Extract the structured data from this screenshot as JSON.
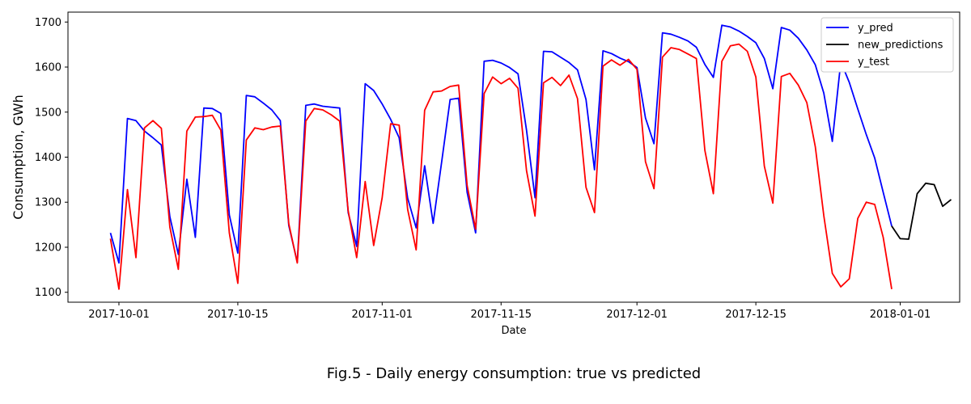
{
  "caption": "Fig.5 - Daily energy consumption: true vs predicted",
  "chart_data": {
    "type": "line",
    "title": "",
    "xlabel": "Date",
    "ylabel": "Consumption, GWh",
    "xlim": [
      "2017-09-25",
      "2018-01-08"
    ],
    "ylim": [
      1078,
      1722
    ],
    "x_ticks": [
      "2017-10-01",
      "2017-10-15",
      "2017-11-01",
      "2017-11-15",
      "2017-12-01",
      "2017-12-15",
      "2018-01-01"
    ],
    "y_ticks": [
      1100,
      1200,
      1300,
      1400,
      1500,
      1600,
      1700
    ],
    "legend_position": "top-right",
    "series": [
      {
        "name": "y_pred",
        "color": "#0000ff",
        "points": [
          [
            "2017-09-30",
            1232
          ],
          [
            "2017-10-01",
            1165
          ],
          [
            "2017-10-02",
            1486
          ],
          [
            "2017-10-03",
            1481
          ],
          [
            "2017-10-04",
            1458
          ],
          [
            "2017-10-05",
            1443
          ],
          [
            "2017-10-06",
            1427
          ],
          [
            "2017-10-07",
            1268
          ],
          [
            "2017-10-08",
            1184
          ],
          [
            "2017-10-09",
            1351
          ],
          [
            "2017-10-10",
            1222
          ],
          [
            "2017-10-11",
            1509
          ],
          [
            "2017-10-12",
            1508
          ],
          [
            "2017-10-13",
            1497
          ],
          [
            "2017-10-14",
            1272
          ],
          [
            "2017-10-15",
            1187
          ],
          [
            "2017-10-16",
            1537
          ],
          [
            "2017-10-17",
            1534
          ],
          [
            "2017-10-18",
            1520
          ],
          [
            "2017-10-19",
            1505
          ],
          [
            "2017-10-20",
            1481
          ],
          [
            "2017-10-21",
            1248
          ],
          [
            "2017-10-22",
            1167
          ],
          [
            "2017-10-23",
            1515
          ],
          [
            "2017-10-24",
            1518
          ],
          [
            "2017-10-25",
            1513
          ],
          [
            "2017-10-26",
            1511
          ],
          [
            "2017-10-27",
            1509
          ],
          [
            "2017-10-28",
            1277
          ],
          [
            "2017-10-29",
            1202
          ],
          [
            "2017-10-30",
            1563
          ],
          [
            "2017-10-31",
            1548
          ],
          [
            "2017-11-01",
            1518
          ],
          [
            "2017-11-02",
            1484
          ],
          [
            "2017-11-03",
            1443
          ],
          [
            "2017-11-04",
            1309
          ],
          [
            "2017-11-05",
            1243
          ],
          [
            "2017-11-06",
            1381
          ],
          [
            "2017-11-07",
            1253
          ],
          [
            "2017-11-08",
            1389
          ],
          [
            "2017-11-09",
            1528
          ],
          [
            "2017-11-10",
            1531
          ],
          [
            "2017-11-11",
            1322
          ],
          [
            "2017-11-12",
            1232
          ],
          [
            "2017-11-13",
            1613
          ],
          [
            "2017-11-14",
            1615
          ],
          [
            "2017-11-15",
            1609
          ],
          [
            "2017-11-16",
            1599
          ],
          [
            "2017-11-17",
            1585
          ],
          [
            "2017-11-18",
            1460
          ],
          [
            "2017-11-19",
            1310
          ],
          [
            "2017-11-20",
            1635
          ],
          [
            "2017-11-21",
            1634
          ],
          [
            "2017-11-22",
            1622
          ],
          [
            "2017-11-23",
            1610
          ],
          [
            "2017-11-24",
            1594
          ],
          [
            "2017-11-25",
            1528
          ],
          [
            "2017-11-26",
            1372
          ],
          [
            "2017-11-27",
            1636
          ],
          [
            "2017-11-28",
            1630
          ],
          [
            "2017-11-29",
            1620
          ],
          [
            "2017-11-30",
            1612
          ],
          [
            "2017-12-01",
            1599
          ],
          [
            "2017-12-02",
            1487
          ],
          [
            "2017-12-03",
            1430
          ],
          [
            "2017-12-04",
            1676
          ],
          [
            "2017-12-05",
            1673
          ],
          [
            "2017-12-06",
            1666
          ],
          [
            "2017-12-07",
            1658
          ],
          [
            "2017-12-08",
            1644
          ],
          [
            "2017-12-09",
            1606
          ],
          [
            "2017-12-10",
            1577
          ],
          [
            "2017-12-11",
            1693
          ],
          [
            "2017-12-12",
            1689
          ],
          [
            "2017-12-13",
            1680
          ],
          [
            "2017-12-14",
            1668
          ],
          [
            "2017-12-15",
            1654
          ],
          [
            "2017-12-16",
            1619
          ],
          [
            "2017-12-17",
            1552
          ],
          [
            "2017-12-18",
            1688
          ],
          [
            "2017-12-19",
            1682
          ],
          [
            "2017-12-20",
            1664
          ],
          [
            "2017-12-21",
            1638
          ],
          [
            "2017-12-22",
            1605
          ],
          [
            "2017-12-23",
            1542
          ],
          [
            "2017-12-24",
            1435
          ],
          [
            "2017-12-25",
            1612
          ],
          [
            "2017-12-26",
            1566
          ],
          [
            "2017-12-27",
            1507
          ],
          [
            "2017-12-28",
            1450
          ],
          [
            "2017-12-29",
            1398
          ],
          [
            "2017-12-30",
            1322
          ],
          [
            "2017-12-31",
            1247
          ]
        ]
      },
      {
        "name": "new_predictions",
        "color": "#000000",
        "points": [
          [
            "2017-12-31",
            1247
          ],
          [
            "2018-01-01",
            1219
          ],
          [
            "2018-01-02",
            1218
          ],
          [
            "2018-01-03",
            1319
          ],
          [
            "2018-01-04",
            1342
          ],
          [
            "2018-01-05",
            1339
          ],
          [
            "2018-01-06",
            1291
          ],
          [
            "2018-01-07",
            1306
          ]
        ]
      },
      {
        "name": "y_test",
        "color": "#ff0000",
        "points": [
          [
            "2017-09-30",
            1219
          ],
          [
            "2017-10-01",
            1107
          ],
          [
            "2017-10-02",
            1328
          ],
          [
            "2017-10-03",
            1177
          ],
          [
            "2017-10-04",
            1465
          ],
          [
            "2017-10-05",
            1481
          ],
          [
            "2017-10-06",
            1464
          ],
          [
            "2017-10-07",
            1245
          ],
          [
            "2017-10-08",
            1151
          ],
          [
            "2017-10-09",
            1458
          ],
          [
            "2017-10-10",
            1489
          ],
          [
            "2017-10-11",
            1490
          ],
          [
            "2017-10-12",
            1493
          ],
          [
            "2017-10-13",
            1460
          ],
          [
            "2017-10-14",
            1232
          ],
          [
            "2017-10-15",
            1120
          ],
          [
            "2017-10-16",
            1438
          ],
          [
            "2017-10-17",
            1465
          ],
          [
            "2017-10-18",
            1461
          ],
          [
            "2017-10-19",
            1467
          ],
          [
            "2017-10-20",
            1469
          ],
          [
            "2017-10-21",
            1252
          ],
          [
            "2017-10-22",
            1165
          ],
          [
            "2017-10-23",
            1480
          ],
          [
            "2017-10-24",
            1508
          ],
          [
            "2017-10-25",
            1505
          ],
          [
            "2017-10-26",
            1494
          ],
          [
            "2017-10-27",
            1480
          ],
          [
            "2017-10-28",
            1281
          ],
          [
            "2017-10-29",
            1177
          ],
          [
            "2017-10-30",
            1346
          ],
          [
            "2017-10-31",
            1204
          ],
          [
            "2017-11-01",
            1310
          ],
          [
            "2017-11-02",
            1474
          ],
          [
            "2017-11-03",
            1471
          ],
          [
            "2017-11-04",
            1284
          ],
          [
            "2017-11-05",
            1194
          ],
          [
            "2017-11-06",
            1504
          ],
          [
            "2017-11-07",
            1545
          ],
          [
            "2017-11-08",
            1547
          ],
          [
            "2017-11-09",
            1557
          ],
          [
            "2017-11-10",
            1560
          ],
          [
            "2017-11-11",
            1337
          ],
          [
            "2017-11-12",
            1240
          ],
          [
            "2017-11-13",
            1541
          ],
          [
            "2017-11-14",
            1578
          ],
          [
            "2017-11-15",
            1563
          ],
          [
            "2017-11-16",
            1575
          ],
          [
            "2017-11-17",
            1553
          ],
          [
            "2017-11-18",
            1370
          ],
          [
            "2017-11-19",
            1269
          ],
          [
            "2017-11-20",
            1565
          ],
          [
            "2017-11-21",
            1577
          ],
          [
            "2017-11-22",
            1559
          ],
          [
            "2017-11-23",
            1582
          ],
          [
            "2017-11-24",
            1530
          ],
          [
            "2017-11-25",
            1333
          ],
          [
            "2017-11-26",
            1277
          ],
          [
            "2017-11-27",
            1602
          ],
          [
            "2017-11-28",
            1616
          ],
          [
            "2017-11-29",
            1604
          ],
          [
            "2017-11-30",
            1617
          ],
          [
            "2017-12-01",
            1595
          ],
          [
            "2017-12-02",
            1390
          ],
          [
            "2017-12-03",
            1330
          ],
          [
            "2017-12-04",
            1622
          ],
          [
            "2017-12-05",
            1643
          ],
          [
            "2017-12-06",
            1639
          ],
          [
            "2017-12-07",
            1629
          ],
          [
            "2017-12-08",
            1619
          ],
          [
            "2017-12-09",
            1415
          ],
          [
            "2017-12-10",
            1319
          ],
          [
            "2017-12-11",
            1613
          ],
          [
            "2017-12-12",
            1647
          ],
          [
            "2017-12-13",
            1651
          ],
          [
            "2017-12-14",
            1635
          ],
          [
            "2017-12-15",
            1578
          ],
          [
            "2017-12-16",
            1380
          ],
          [
            "2017-12-17",
            1298
          ],
          [
            "2017-12-18",
            1579
          ],
          [
            "2017-12-19",
            1586
          ],
          [
            "2017-12-20",
            1560
          ],
          [
            "2017-12-21",
            1521
          ],
          [
            "2017-12-22",
            1423
          ],
          [
            "2017-12-23",
            1270
          ],
          [
            "2017-12-24",
            1142
          ],
          [
            "2017-12-25",
            1112
          ],
          [
            "2017-12-26",
            1130
          ],
          [
            "2017-12-27",
            1264
          ],
          [
            "2017-12-28",
            1300
          ],
          [
            "2017-12-29",
            1295
          ],
          [
            "2017-12-30",
            1222
          ],
          [
            "2017-12-31",
            1107
          ]
        ]
      }
    ]
  }
}
